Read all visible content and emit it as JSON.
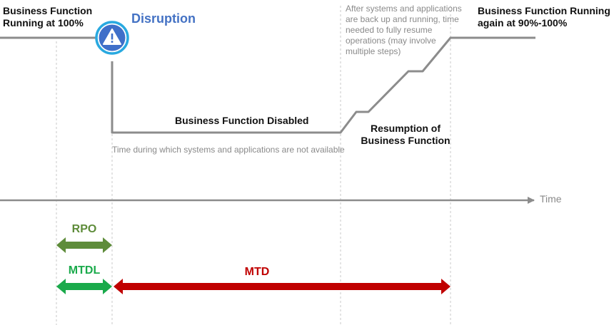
{
  "labels": {
    "running_100": "Business Function\nRunning at 100%",
    "disruption": "Disruption",
    "disabled": "Business Function Disabled",
    "unavailable_note": "Time during which systems and applications are not available",
    "resume_note": "After systems and applications\nare back up and running, time\nneeded to fully resume\noperations (may involve\nmultiple steps)",
    "running_again": "Business Function Running\nagain at 90%-100%",
    "resumption": "Resumption of\nBusiness Function",
    "time_axis": "Time",
    "rpo": "RPO",
    "mtdl": "MTDL",
    "mtd": "MTD"
  },
  "icons": {
    "disruption": "warning-triangle-icon"
  },
  "colors": {
    "disruption_text": "#4472c4",
    "icon_fill": "#3f6fc9",
    "icon_ring": "#29a9e0",
    "rpo_arrow": "#5e8c3a",
    "mtdl_arrow": "#1aaa4b",
    "mtd_arrow": "#c00000",
    "timeline": "#8c8c8c"
  }
}
